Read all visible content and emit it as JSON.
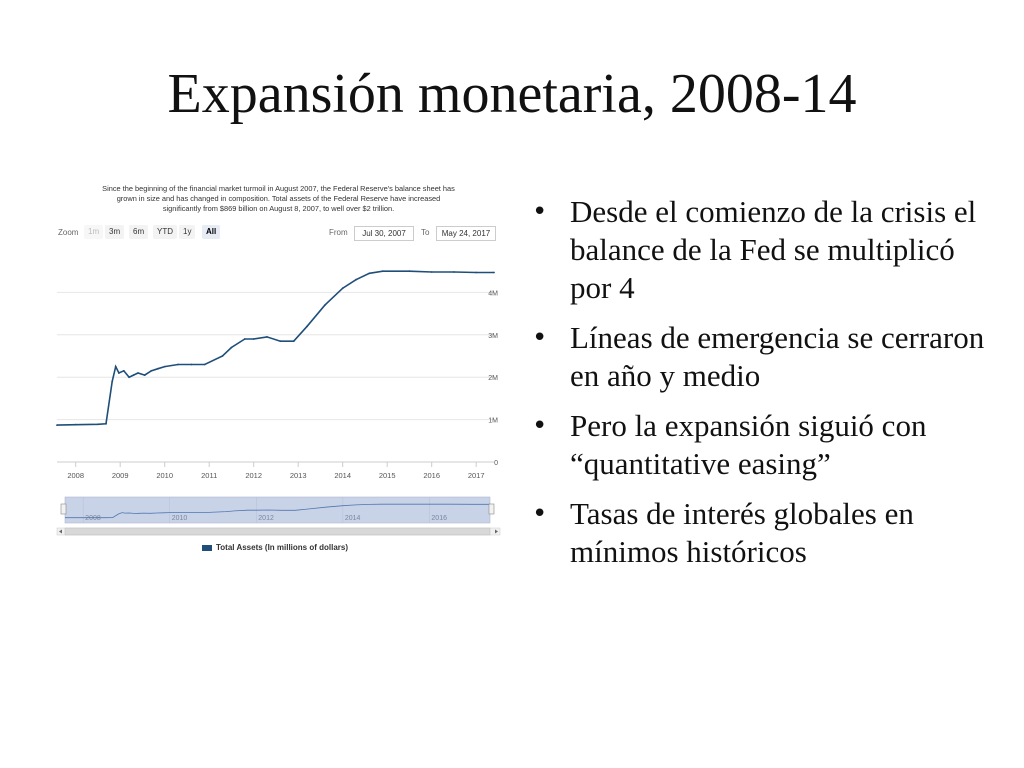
{
  "slide": {
    "title": "Expansión monetaria, 2008-14",
    "bullets": [
      "Desde el comienzo de la crisis el balance de la Fed se multiplicó por 4",
      "Líneas de emergencia se cerraron en año y medio",
      "Pero la expansión siguió con “quantitative easing”",
      "Tasas de interés globales en mínimos históricos"
    ]
  },
  "widget": {
    "caption_lines": [
      "Since the beginning of the financial market turmoil in August 2007, the Federal Reserve's balance sheet has",
      "grown in size and has changed in composition. Total assets of the Federal Reserve have increased",
      "significantly from $869 billion on August 8, 2007, to well over $2 trillion."
    ],
    "zoom_label": "Zoom",
    "zoom_buttons": [
      "1m",
      "3m",
      "6m",
      "YTD",
      "1y",
      "All"
    ],
    "from_label": "From",
    "from_value": "Jul 30, 2007",
    "to_label": "To",
    "to_value": "May 24, 2017",
    "navigator_years": [
      "2008",
      "2010",
      "2012",
      "2014",
      "2016"
    ],
    "colors": {
      "line": "#1f4e79",
      "navigator_fill": "#c9d3e8",
      "grid": "#e6e6e6"
    }
  },
  "chart_data": {
    "type": "line",
    "series": [
      {
        "name": "Total Assets (In millions of dollars)",
        "x": [
          2007.58,
          2008.0,
          2008.5,
          2008.68,
          2008.82,
          2008.9,
          2008.97,
          2009.08,
          2009.2,
          2009.3,
          2009.4,
          2009.55,
          2009.7,
          2009.85,
          2010.0,
          2010.3,
          2010.6,
          2010.9,
          2011.3,
          2011.5,
          2011.8,
          2012.0,
          2012.3,
          2012.6,
          2012.9,
          2013.2,
          2013.6,
          2014.0,
          2014.3,
          2014.6,
          2014.9,
          2015.5,
          2016.0,
          2016.5,
          2017.0,
          2017.4
        ],
        "y": [
          0.87,
          0.88,
          0.89,
          0.9,
          1.9,
          2.25,
          2.1,
          2.15,
          2.0,
          2.05,
          2.1,
          2.05,
          2.15,
          2.2,
          2.25,
          2.3,
          2.3,
          2.3,
          2.5,
          2.7,
          2.9,
          2.9,
          2.95,
          2.85,
          2.85,
          3.2,
          3.7,
          4.1,
          4.3,
          4.45,
          4.5,
          4.5,
          4.48,
          4.48,
          4.47,
          4.47
        ]
      }
    ],
    "x_ticks": [
      "2008",
      "2009",
      "2010",
      "2011",
      "2012",
      "2013",
      "2014",
      "2015",
      "2016",
      "2017"
    ],
    "y_ticks": [
      "0",
      "1M",
      "2M",
      "3M",
      "4M"
    ],
    "xlim": [
      2007.58,
      2017.4
    ],
    "ylim": [
      0,
      5
    ],
    "grid": true,
    "legend_position": "bottom"
  }
}
